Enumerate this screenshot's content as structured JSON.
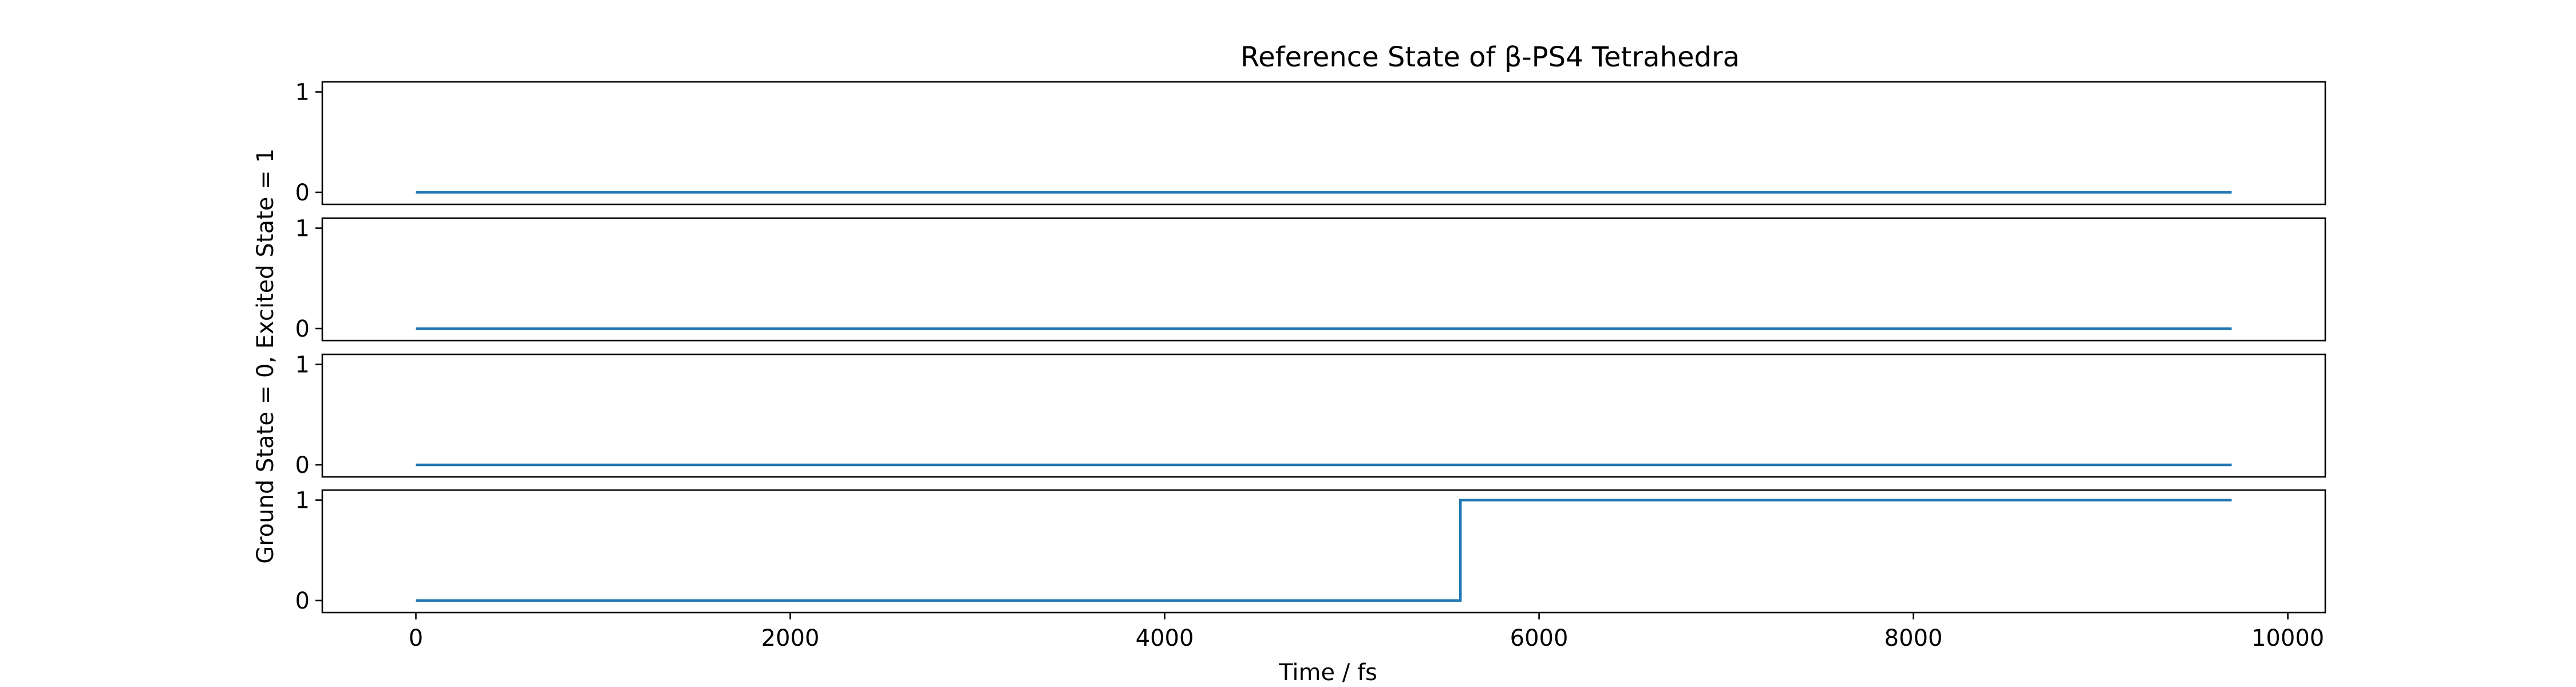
{
  "chart_data": {
    "type": "line",
    "title": "Reference State of β-PS4 Tetrahedra",
    "xlabel": "Time / fs",
    "ylabel": "Ground State = 0, Excited State = 1",
    "xlim": [
      -500,
      10200
    ],
    "ylim": [
      -0.12,
      1.1
    ],
    "x_ticks": [
      0,
      2000,
      4000,
      6000,
      8000,
      10000
    ],
    "y_ticks": [
      0,
      1
    ],
    "grid": false,
    "colors": {
      "series": "#1f77b4",
      "axes": "#000000",
      "background": "#ffffff"
    },
    "subplots": [
      {
        "series": [
          {
            "x": [
              0,
              9700
            ],
            "y": [
              0,
              0
            ]
          }
        ]
      },
      {
        "series": [
          {
            "x": [
              0,
              9700
            ],
            "y": [
              0,
              0
            ]
          }
        ]
      },
      {
        "series": [
          {
            "x": [
              0,
              9700
            ],
            "y": [
              0,
              0
            ]
          }
        ]
      },
      {
        "series": [
          {
            "x": [
              0,
              5580,
              5580,
              9700
            ],
            "y": [
              0,
              0,
              1,
              1
            ]
          }
        ]
      }
    ]
  }
}
